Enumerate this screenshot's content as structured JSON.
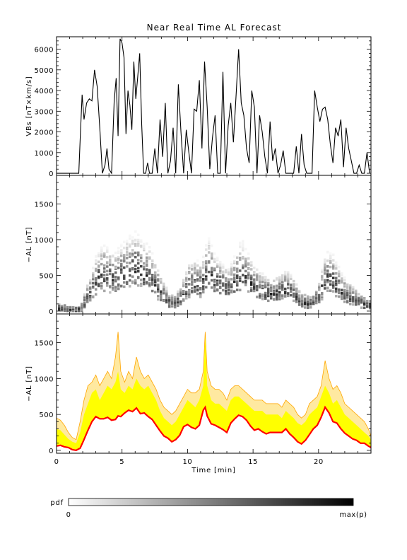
{
  "title": "Near Real Time AL Forecast",
  "chart_data": [
    {
      "type": "line",
      "panel": "top",
      "ylabel": "VBs [nT×km/s]",
      "xlim": [
        0,
        24
      ],
      "ylim": [
        -100,
        6600
      ],
      "yticks": [
        0,
        1000,
        2000,
        3000,
        4000,
        5000,
        6000
      ],
      "series": [
        {
          "x": [
            0,
            1.7,
            1.8,
            1.95,
            2.1,
            2.3,
            2.5,
            2.7,
            2.9,
            3.1,
            3.3,
            3.5,
            3.7,
            3.85,
            4.0,
            4.2,
            4.4,
            4.55,
            4.7,
            4.85,
            5.0,
            5.15,
            5.3,
            5.45,
            5.6,
            5.75,
            5.9,
            6.05,
            6.2,
            6.35,
            6.5,
            6.65,
            6.8,
            6.95,
            7.1,
            7.3,
            7.5,
            7.7,
            7.9,
            8.1,
            8.3,
            8.5,
            8.7,
            8.9,
            9.1,
            9.3,
            9.5,
            9.7,
            9.9,
            10.1,
            10.3,
            10.5,
            10.7,
            10.9,
            11.1,
            11.3,
            11.5,
            11.7,
            11.9,
            12.1,
            12.3,
            12.5,
            12.7,
            12.9,
            13.1,
            13.3,
            13.5,
            13.7,
            13.9,
            14.1,
            14.3,
            14.5,
            14.7,
            14.9,
            15.1,
            15.3,
            15.5,
            15.7,
            15.9,
            16.1,
            16.3,
            16.5,
            16.7,
            16.9,
            17.1,
            17.3,
            17.5,
            17.7,
            17.9,
            18.1,
            18.3,
            18.5,
            18.7,
            18.9,
            19.1,
            19.3,
            19.5,
            19.7,
            19.9,
            20.1,
            20.3,
            20.5,
            20.7,
            20.9,
            21.1,
            21.3,
            21.5,
            21.7,
            21.9,
            22.1,
            22.3,
            22.5,
            22.7,
            22.9,
            23.1,
            23.3,
            23.5,
            23.7,
            23.9
          ],
          "y": [
            0,
            0,
            1600,
            3800,
            2600,
            3400,
            3600,
            3500,
            5000,
            4200,
            2200,
            0,
            400,
            1200,
            200,
            0,
            3500,
            4600,
            1800,
            6500,
            6300,
            5600,
            1900,
            4000,
            3300,
            2100,
            5400,
            3600,
            4700,
            5800,
            2400,
            0,
            0,
            500,
            0,
            0,
            1200,
            0,
            2600,
            800,
            3400,
            0,
            600,
            2200,
            0,
            4300,
            2000,
            0,
            2100,
            1000,
            0,
            3100,
            3000,
            4500,
            1200,
            5400,
            3200,
            200,
            1700,
            2800,
            0,
            0,
            4900,
            0,
            2300,
            3400,
            1500,
            3700,
            6000,
            3400,
            2800,
            1200,
            500,
            4000,
            3200,
            0,
            2800,
            2000,
            800,
            0,
            2500,
            600,
            1200,
            0,
            400,
            1100,
            0,
            0,
            0,
            0,
            1300,
            0,
            1900,
            400,
            0,
            0,
            0,
            4000,
            3200,
            2500,
            3100,
            3200,
            2600,
            1400,
            500,
            2200,
            1800,
            2600,
            300,
            2200,
            1200,
            600,
            0,
            0,
            400,
            0,
            0,
            1000,
            0
          ]
        }
      ]
    },
    {
      "type": "heatmap",
      "panel": "middle",
      "ylabel": "−AL [nT]",
      "xlim": [
        0,
        24
      ],
      "ylim": [
        -40,
        1900
      ],
      "yticks": [
        0,
        500,
        1000,
        1500
      ],
      "legend_title": "pdf",
      "colorbar_labels": [
        "0",
        "max(p)"
      ],
      "median_curve": {
        "x": [
          0,
          0.5,
          1.0,
          1.5,
          1.8,
          2.0,
          2.5,
          3.0,
          3.5,
          4.0,
          4.5,
          5.0,
          5.5,
          6.0,
          6.5,
          7.0,
          7.5,
          8.0,
          8.5,
          9.0,
          9.5,
          10.0,
          10.5,
          11.0,
          11.5,
          12.0,
          12.5,
          13.0,
          13.5,
          14.0,
          14.5,
          15.0,
          15.5,
          16.0,
          16.5,
          17.0,
          17.5,
          18.0,
          18.5,
          19.0,
          19.5,
          20.0,
          20.5,
          21.0,
          21.5,
          22.0,
          22.5,
          23.0,
          23.5,
          24.0
        ],
        "y": [
          40,
          30,
          20,
          10,
          30,
          100,
          250,
          420,
          500,
          470,
          430,
          520,
          560,
          600,
          520,
          480,
          350,
          220,
          120,
          100,
          200,
          350,
          380,
          350,
          560,
          420,
          350,
          300,
          400,
          520,
          450,
          330,
          280,
          250,
          230,
          260,
          300,
          230,
          130,
          100,
          110,
          220,
          450,
          420,
          300,
          220,
          180,
          120,
          90,
          60
        ]
      }
    },
    {
      "type": "area",
      "panel": "bottom",
      "ylabel": "−AL [nT]",
      "xlabel": "Time [min]",
      "xlim": [
        0,
        24
      ],
      "ylim": [
        -40,
        1900
      ],
      "xticks": [
        0,
        5,
        10,
        15,
        20
      ],
      "yticks": [
        0,
        500,
        1000,
        1500
      ],
      "x": [
        0,
        0.3,
        0.6,
        0.9,
        1.2,
        1.5,
        1.8,
        2.1,
        2.4,
        2.7,
        3.0,
        3.3,
        3.6,
        3.9,
        4.2,
        4.5,
        4.7,
        4.9,
        5.2,
        5.5,
        5.8,
        6.1,
        6.4,
        6.7,
        7.0,
        7.3,
        7.6,
        7.9,
        8.2,
        8.5,
        8.8,
        9.1,
        9.4,
        9.7,
        10.0,
        10.3,
        10.6,
        10.9,
        11.2,
        11.35,
        11.5,
        11.8,
        12.1,
        12.4,
        12.7,
        13.0,
        13.3,
        13.6,
        13.9,
        14.2,
        14.5,
        14.8,
        15.1,
        15.4,
        15.7,
        16.0,
        16.3,
        16.6,
        16.9,
        17.2,
        17.5,
        17.8,
        18.1,
        18.4,
        18.7,
        19.0,
        19.3,
        19.6,
        19.9,
        20.2,
        20.5,
        20.8,
        21.1,
        21.4,
        21.7,
        22.0,
        22.3,
        22.6,
        22.9,
        23.2,
        23.5,
        23.8,
        24.0
      ],
      "series": [
        {
          "name": "median",
          "color": "#ff0000",
          "values": [
            60,
            70,
            50,
            40,
            10,
            0,
            30,
            150,
            280,
            400,
            470,
            440,
            440,
            460,
            420,
            430,
            480,
            470,
            520,
            560,
            540,
            590,
            510,
            520,
            470,
            430,
            350,
            270,
            200,
            170,
            120,
            150,
            210,
            330,
            360,
            320,
            300,
            350,
            560,
            600,
            480,
            370,
            350,
            320,
            290,
            250,
            380,
            440,
            490,
            470,
            420,
            340,
            280,
            300,
            260,
            230,
            250,
            250,
            250,
            250,
            300,
            230,
            180,
            120,
            90,
            140,
            220,
            300,
            350,
            460,
            600,
            520,
            400,
            380,
            300,
            240,
            200,
            160,
            140,
            100,
            100,
            60,
            40
          ]
        },
        {
          "name": "upper band",
          "color": "#ffff00",
          "values": [
            300,
            280,
            220,
            160,
            120,
            100,
            250,
            500,
            650,
            800,
            850,
            700,
            800,
            900,
            850,
            950,
            1100,
            850,
            800,
            900,
            850,
            1000,
            900,
            850,
            900,
            800,
            700,
            550,
            450,
            400,
            350,
            400,
            500,
            600,
            700,
            650,
            600,
            700,
            900,
            1600,
            900,
            700,
            650,
            650,
            600,
            550,
            700,
            750,
            750,
            700,
            650,
            600,
            550,
            550,
            550,
            500,
            500,
            500,
            500,
            450,
            550,
            500,
            450,
            380,
            350,
            400,
            500,
            550,
            600,
            750,
            900,
            800,
            650,
            700,
            600,
            500,
            450,
            400,
            350,
            300,
            250,
            200,
            150
          ]
        },
        {
          "name": "outer band",
          "color": "#ffa500",
          "values": [
            450,
            420,
            350,
            250,
            180,
            150,
            400,
            700,
            900,
            950,
            1050,
            900,
            1000,
            1100,
            1000,
            1300,
            1650,
            1100,
            950,
            1100,
            1000,
            1300,
            1100,
            1000,
            1050,
            950,
            850,
            700,
            600,
            550,
            500,
            550,
            650,
            750,
            850,
            800,
            800,
            850,
            1100,
            1650,
            1100,
            900,
            850,
            850,
            800,
            700,
            850,
            900,
            900,
            850,
            800,
            750,
            700,
            700,
            700,
            650,
            650,
            650,
            650,
            600,
            700,
            650,
            600,
            500,
            450,
            500,
            650,
            700,
            750,
            900,
            1250,
            1000,
            850,
            900,
            800,
            650,
            600,
            550,
            500,
            450,
            400,
            300,
            200
          ]
        }
      ]
    }
  ]
}
